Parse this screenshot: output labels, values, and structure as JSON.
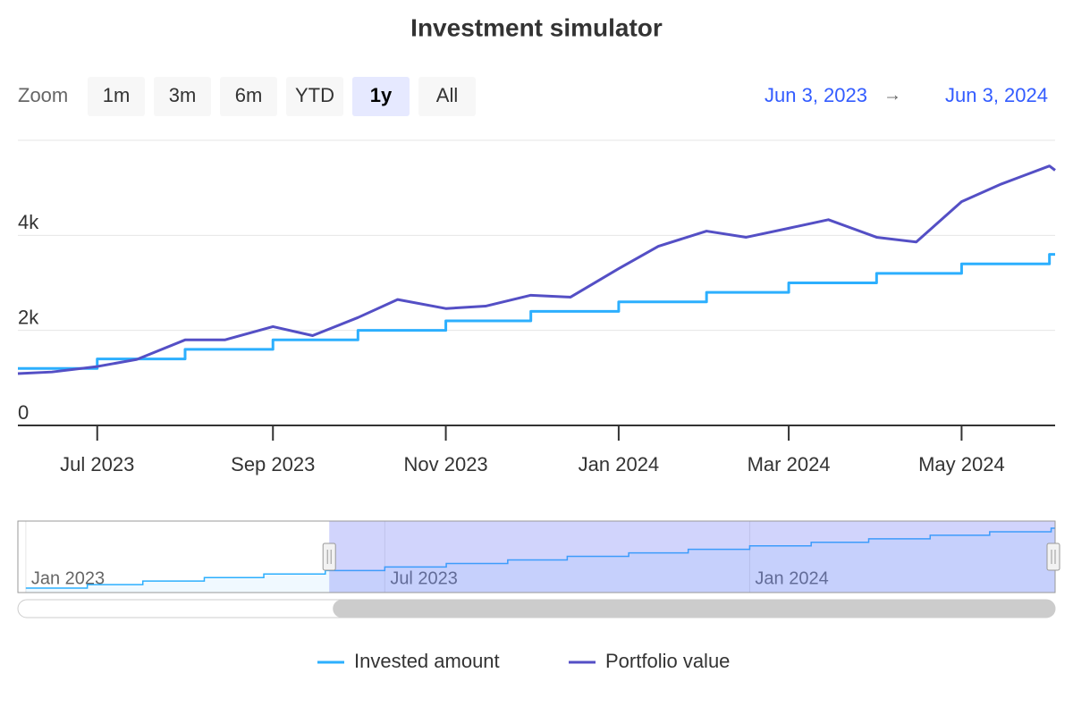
{
  "chart_data": {
    "type": "line",
    "title": "Investment simulator",
    "range_selector": {
      "label": "Zoom",
      "buttons": [
        "1m",
        "3m",
        "6m",
        "YTD",
        "1y",
        "All"
      ],
      "selected": 4,
      "from": "Jun 3, 2023",
      "separator": "→",
      "to": "Jun 3, 2024"
    },
    "x": [
      "2023-06-03",
      "2023-06-15",
      "2023-07-01",
      "2023-07-15",
      "2023-08-01",
      "2023-08-15",
      "2023-09-01",
      "2023-09-15",
      "2023-10-01",
      "2023-10-15",
      "2023-11-01",
      "2023-11-15",
      "2023-12-01",
      "2023-12-15",
      "2024-01-01",
      "2024-01-15",
      "2024-02-01",
      "2024-02-15",
      "2024-03-01",
      "2024-03-15",
      "2024-04-01",
      "2024-04-15",
      "2024-05-01",
      "2024-05-15",
      "2024-06-01",
      "2024-06-03"
    ],
    "series": [
      {
        "name": "Invested amount",
        "color": "#2caffe",
        "step": true,
        "values": [
          1200,
          1200,
          1400,
          1400,
          1600,
          1600,
          1800,
          1800,
          2000,
          2000,
          2200,
          2200,
          2400,
          2400,
          2600,
          2600,
          2800,
          2800,
          3000,
          3000,
          3200,
          3200,
          3400,
          3400,
          3600,
          3600
        ]
      },
      {
        "name": "Portfolio value",
        "color": "#544fc5",
        "step": false,
        "values": [
          1090,
          1125,
          1240,
          1390,
          1800,
          1800,
          2080,
          1890,
          2270,
          2650,
          2460,
          2510,
          2740,
          2700,
          3300,
          3770,
          4090,
          3960,
          4150,
          4330,
          3960,
          3860,
          4710,
          5080,
          5460,
          5370
        ]
      }
    ],
    "xlim": [
      "2023-06-03",
      "2024-06-03"
    ],
    "xticks": [
      {
        "value": "2023-07-01",
        "label": "Jul 2023"
      },
      {
        "value": "2023-09-01",
        "label": "Sep 2023"
      },
      {
        "value": "2023-11-01",
        "label": "Nov 2023"
      },
      {
        "value": "2024-01-01",
        "label": "Jan 2024"
      },
      {
        "value": "2024-03-01",
        "label": "Mar 2024"
      },
      {
        "value": "2024-05-01",
        "label": "May 2024"
      }
    ],
    "ylim": [
      0,
      6000
    ],
    "yticks": [
      0,
      {
        "value": 2000,
        "label": "2k"
      },
      {
        "value": 4000,
        "label": "4k"
      }
    ],
    "grid": true,
    "navigator": {
      "x": [
        "2023-01-01",
        "2023-02-01",
        "2023-03-01",
        "2023-04-01",
        "2023-05-01",
        "2023-06-01",
        "2023-07-01",
        "2023-08-01",
        "2023-09-01",
        "2023-10-01",
        "2023-11-01",
        "2023-12-01",
        "2024-01-01",
        "2024-02-01",
        "2024-03-01",
        "2024-04-01",
        "2024-05-01",
        "2024-06-01"
      ],
      "values": [
        200,
        400,
        600,
        800,
        1000,
        1200,
        1400,
        1600,
        1800,
        2000,
        2200,
        2400,
        2600,
        2800,
        3000,
        3200,
        3400,
        3600
      ],
      "xlim": [
        "2022-12-28",
        "2024-06-03"
      ],
      "ylim": [
        0,
        3600
      ],
      "xticks": [
        {
          "value": "2023-01-01",
          "label": "Jan 2023"
        },
        {
          "value": "2023-07-01",
          "label": "Jul 2023"
        },
        {
          "value": "2024-01-01",
          "label": "Jan 2024"
        }
      ]
    }
  }
}
